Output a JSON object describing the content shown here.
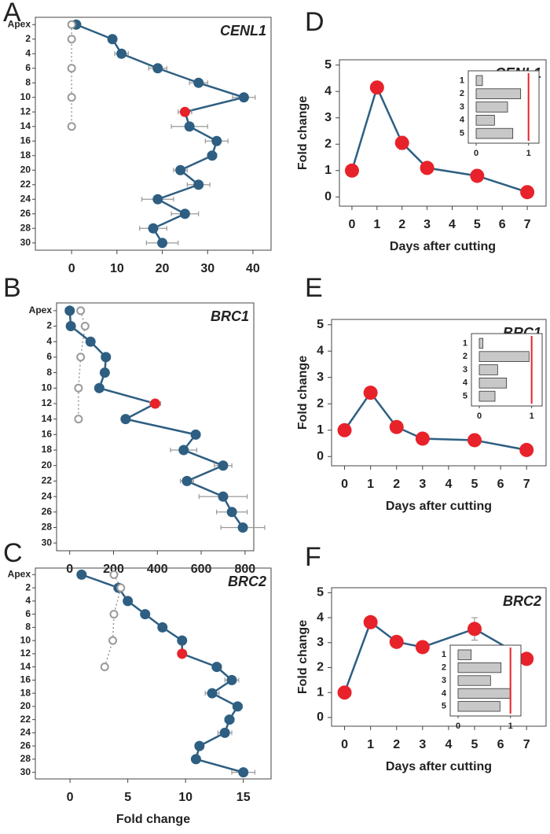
{
  "chart_data": [
    {
      "type": "line",
      "orientation": "horizontal",
      "panel_label": "A",
      "title": "CENL1",
      "categories": [
        "Apex",
        "2",
        "4",
        "6",
        "8",
        "10",
        "12",
        "14",
        "16",
        "18",
        "20",
        "22",
        "24",
        "26",
        "28",
        "30"
      ],
      "xlim": [
        -8,
        44
      ],
      "xticks": [
        0,
        10,
        20,
        30,
        40
      ],
      "series": [
        {
          "color": "#2e5f82",
          "error_color": "#999999",
          "point_colors": [
            "#2e5f82",
            "#2e5f82",
            "#2e5f82",
            "#2e5f82",
            "#2e5f82",
            "#2e5f82",
            "#e8222a",
            "#2e5f82",
            "#2e5f82",
            "#2e5f82",
            "#2e5f82",
            "#2e5f82",
            "#2e5f82",
            "#2e5f82",
            "#2e5f82",
            "#2e5f82"
          ],
          "values": [
            1,
            9,
            11,
            19,
            28,
            38,
            25,
            26,
            32,
            31,
            24,
            28,
            19,
            25,
            18,
            20
          ],
          "errors": [
            0,
            0.5,
            1.5,
            2,
            2,
            2.5,
            1.5,
            4,
            2.5,
            1,
            1.5,
            2.5,
            3.5,
            3,
            3,
            3.5
          ]
        },
        {
          "color": "#999999",
          "marker": "open",
          "line_style": "dotted",
          "connect_gaps": true,
          "values": [
            0,
            0,
            null,
            0,
            null,
            0,
            null,
            0,
            null,
            null,
            null,
            null,
            null,
            null,
            null,
            null
          ]
        }
      ]
    },
    {
      "type": "line",
      "orientation": "horizontal",
      "panel_label": "B",
      "title": "BRC1",
      "categories": [
        "Apex",
        "2",
        "4",
        "6",
        "8",
        "10",
        "12",
        "14",
        "16",
        "18",
        "20",
        "22",
        "24",
        "26",
        "28",
        "30"
      ],
      "xlim": [
        -60,
        840
      ],
      "xticks": [
        0,
        200,
        400,
        600,
        800
      ],
      "series": [
        {
          "color": "#2e5f82",
          "error_color": "#999999",
          "point_colors": [
            "#2e5f82",
            "#2e5f82",
            "#2e5f82",
            "#2e5f82",
            "#2e5f82",
            "#2e5f82",
            "#e8222a",
            "#2e5f82",
            "#2e5f82",
            "#2e5f82",
            "#2e5f82",
            "#2e5f82",
            "#2e5f82",
            "#2e5f82",
            "#2e5f82",
            "#2e5f82"
          ],
          "values": [
            0,
            5,
            95,
            165,
            160,
            135,
            390,
            255,
            575,
            520,
            700,
            535,
            700,
            740,
            790,
            null
          ],
          "errors": [
            0,
            5,
            10,
            20,
            10,
            20,
            25,
            10,
            20,
            60,
            40,
            30,
            110,
            70,
            100,
            null
          ]
        },
        {
          "color": "#999999",
          "marker": "open",
          "line_style": "dotted",
          "connect_gaps": true,
          "values": [
            50,
            70,
            null,
            50,
            null,
            40,
            null,
            40,
            null,
            null,
            null,
            null,
            null,
            null,
            null,
            null
          ]
        }
      ]
    },
    {
      "type": "line",
      "orientation": "horizontal",
      "panel_label": "C",
      "title": "BRC2",
      "xlabel": "Fold change",
      "categories": [
        "Apex",
        "2",
        "4",
        "6",
        "8",
        "10",
        "12",
        "14",
        "16",
        "18",
        "20",
        "22",
        "24",
        "26",
        "28",
        "30"
      ],
      "xlim": [
        -3,
        17.4
      ],
      "xticks": [
        0,
        5,
        10,
        15
      ],
      "series": [
        {
          "color": "#2e5f82",
          "error_color": "#999999",
          "point_colors": [
            "#2e5f82",
            "#2e5f82",
            "#2e5f82",
            "#2e5f82",
            "#2e5f82",
            "#2e5f82",
            "#e8222a",
            "#2e5f82",
            "#2e5f82",
            "#2e5f82",
            "#2e5f82",
            "#2e5f82",
            "#2e5f82",
            "#2e5f82",
            "#2e5f82",
            "#2e5f82"
          ],
          "values": [
            1,
            4.2,
            5,
            6.5,
            8,
            9.7,
            9.7,
            12.7,
            14,
            12.3,
            14.5,
            13.8,
            13.4,
            11.2,
            10.9,
            15
          ],
          "errors": [
            0,
            0.4,
            0.3,
            0.2,
            0.3,
            0.3,
            0.2,
            0.4,
            0.6,
            0.6,
            0.4,
            0.4,
            0.6,
            0.3,
            0.2,
            1.0
          ]
        },
        {
          "color": "#999999",
          "marker": "open",
          "line_style": "dotted",
          "connect_gaps": true,
          "values": [
            3.8,
            4.4,
            null,
            3.8,
            null,
            3.7,
            null,
            3.0,
            null,
            null,
            null,
            null,
            null,
            null,
            null,
            null
          ]
        }
      ]
    },
    {
      "type": "line",
      "orientation": "vertical",
      "panel_label": "D",
      "title": "CENL1",
      "xlabel": "Days after cutting",
      "ylabel": "Fold change",
      "x": [
        0,
        1,
        2,
        3,
        5,
        7
      ],
      "xlim": [
        -0.5,
        7.75
      ],
      "xticks": [
        0,
        1,
        2,
        3,
        4,
        5,
        6,
        7
      ],
      "ylim": [
        -0.35,
        5.2
      ],
      "yticks": [
        0,
        1,
        2,
        3,
        4,
        5
      ],
      "series": [
        {
          "color": "#2e5f82",
          "marker_color": "#e8222a",
          "error_color": "#999999",
          "values": [
            1,
            4.15,
            2.05,
            1.1,
            0.8,
            0.18
          ],
          "errors": [
            0,
            0.1,
            0.25,
            0.1,
            0.05,
            0.05
          ]
        }
      ],
      "inset": {
        "type": "bar",
        "orientation": "horizontal",
        "categories": [
          "1",
          "2",
          "3",
          "4",
          "5"
        ],
        "values": [
          0.12,
          0.85,
          0.6,
          0.35,
          0.7
        ],
        "color": "#c8c8c8",
        "xlim": [
          -0.15,
          1.2
        ],
        "xticks": [
          0,
          1
        ],
        "reference_line": 1,
        "reference_color": "#e8222a"
      }
    },
    {
      "type": "line",
      "orientation": "vertical",
      "panel_label": "E",
      "title": "BRC1",
      "xlabel": "Days after cutting",
      "ylabel": "Fold change",
      "x": [
        0,
        1,
        2,
        3,
        5,
        7
      ],
      "xlim": [
        -0.5,
        7.75
      ],
      "xticks": [
        0,
        1,
        2,
        3,
        4,
        5,
        6,
        7
      ],
      "ylim": [
        -0.35,
        5.2
      ],
      "yticks": [
        0,
        1,
        2,
        3,
        4,
        5
      ],
      "series": [
        {
          "color": "#2e5f82",
          "marker_color": "#e8222a",
          "error_color": "#999999",
          "values": [
            1,
            2.42,
            1.12,
            0.68,
            0.62,
            0.25
          ],
          "errors": [
            0,
            0.1,
            0.1,
            0.05,
            0.05,
            0.05
          ]
        }
      ],
      "inset": {
        "type": "bar",
        "orientation": "horizontal",
        "categories": [
          "1",
          "2",
          "3",
          "4",
          "5"
        ],
        "values": [
          0.07,
          0.95,
          0.35,
          0.52,
          0.3
        ],
        "color": "#c8c8c8",
        "xlim": [
          -0.15,
          1.2
        ],
        "xticks": [
          0,
          1
        ],
        "reference_line": 1,
        "reference_color": "#e8222a"
      }
    },
    {
      "type": "line",
      "orientation": "vertical",
      "panel_label": "F",
      "title": "BRC2",
      "xlabel": "Days after cutting",
      "ylabel": "Fold change",
      "x": [
        0,
        1,
        2,
        3,
        5,
        7
      ],
      "xlim": [
        -0.5,
        7.75
      ],
      "xticks": [
        0,
        1,
        2,
        3,
        4,
        5,
        6,
        7
      ],
      "ylim": [
        -0.35,
        5.2
      ],
      "yticks": [
        0,
        1,
        2,
        3,
        4,
        5
      ],
      "series": [
        {
          "color": "#2e5f82",
          "marker_color": "#e8222a",
          "error_color": "#999999",
          "values": [
            1,
            3.82,
            3.03,
            2.82,
            3.55,
            2.35
          ],
          "errors": [
            0,
            0.1,
            0.1,
            0.1,
            0.45,
            0.1
          ]
        }
      ],
      "inset": {
        "type": "bar",
        "orientation": "horizontal",
        "categories": [
          "1",
          "2",
          "3",
          "4",
          "5"
        ],
        "values": [
          0.25,
          0.82,
          0.62,
          1.0,
          0.8
        ],
        "color": "#c8c8c8",
        "xlim": [
          -0.15,
          1.2
        ],
        "xticks": [
          0,
          1
        ],
        "reference_line": 1,
        "reference_color": "#e8222a"
      }
    }
  ]
}
